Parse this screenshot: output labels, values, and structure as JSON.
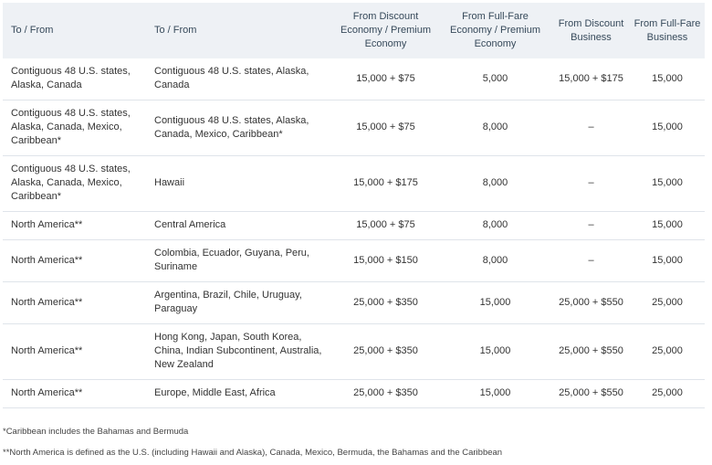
{
  "headers": [
    "To / From",
    "To / From",
    "From Discount Economy / Premium Economy",
    "From Full-Fare Economy / Premium Economy",
    "From Discount Business",
    "From Full-Fare Business"
  ],
  "rows": [
    [
      "Contiguous 48 U.S. states, Alaska, Canada",
      "Contiguous 48 U.S. states, Alaska, Canada",
      "15,000 + $75",
      "5,000",
      "15,000 + $175",
      "15,000"
    ],
    [
      "Contiguous 48 U.S. states, Alaska, Canada, Mexico, Caribbean*",
      "Contiguous 48 U.S. states, Alaska, Canada, Mexico, Caribbean*",
      "15,000 + $75",
      "8,000",
      "–",
      "15,000"
    ],
    [
      "Contiguous 48 U.S. states, Alaska, Canada, Mexico, Caribbean*",
      "Hawaii",
      "15,000 + $175",
      "8,000",
      "–",
      "15,000"
    ],
    [
      "North America**",
      "Central America",
      "15,000 + $75",
      "8,000",
      "–",
      "15,000"
    ],
    [
      "North America**",
      "Colombia, Ecuador, Guyana, Peru, Suriname",
      "15,000 + $150",
      "8,000",
      "–",
      "15,000"
    ],
    [
      "North America**",
      "Argentina, Brazil, Chile, Uruguay, Paraguay",
      "25,000 + $350",
      "15,000",
      "25,000 + $550",
      "25,000"
    ],
    [
      "North America**",
      "Hong Kong, Japan, South Korea, China, Indian Subcontinent, Australia, New Zealand",
      "25,000 + $350",
      "15,000",
      "25,000 + $550",
      "25,000"
    ],
    [
      "North America**",
      "Europe, Middle East, Africa",
      "25,000 + $350",
      "15,000",
      "25,000 + $550",
      "25,000"
    ]
  ],
  "footnotes": [
    "*Caribbean includes the Bahamas and Bermuda",
    "**North America is defined as the U.S. (including Hawaii and Alaska), Canada, Mexico, Bermuda, the Bahamas and the Caribbean"
  ]
}
